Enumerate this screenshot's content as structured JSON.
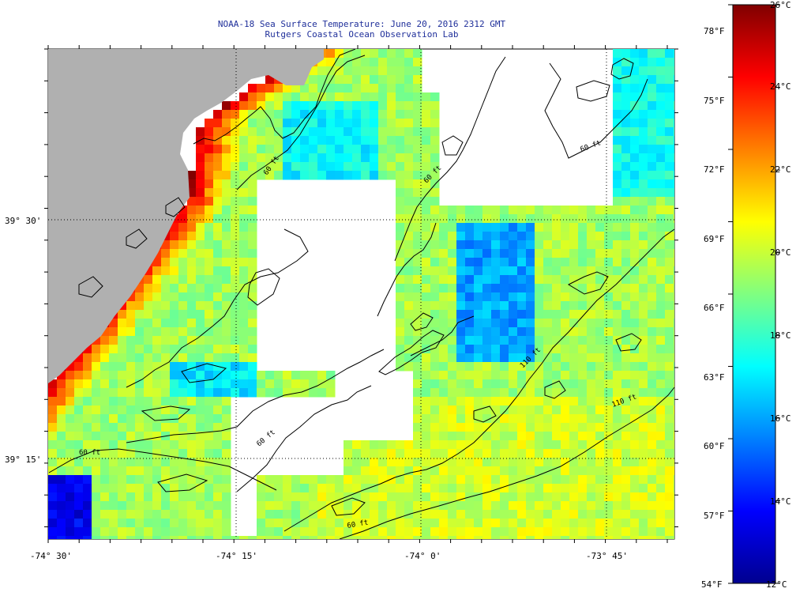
{
  "title": {
    "line1": "NOAA-18 Sea Surface Temperature:  June 20, 2016 2312 GMT",
    "line2": "Rutgers Coastal Ocean Observation Lab"
  },
  "map": {
    "lat_labels": [
      "39° 30'",
      "39° 15'"
    ],
    "lon_labels": [
      "-74° 30'",
      "-74° 15'",
      "-74° 0'",
      "-73° 45'"
    ],
    "contour_labels": [
      "60 ft",
      "60 ft",
      "110 ft",
      "110 ft",
      "60 ft",
      "60 ft",
      "60 ft",
      "60 ft"
    ],
    "colors": {
      "land": "#b0b0b0",
      "no_data": "#ffffff",
      "contour": "#000000"
    }
  },
  "colorbar": {
    "fahrenheit": [
      "78°F",
      "75°F",
      "72°F",
      "69°F",
      "66°F",
      "63°F",
      "60°F",
      "57°F",
      "54°F"
    ],
    "celsius": [
      "26°C",
      "24°C",
      "22°C",
      "20°C",
      "18°C",
      "16°C",
      "14°C",
      "12°C"
    ],
    "range_c": [
      12,
      26
    ],
    "colors": [
      "#00008f",
      "#0000ff",
      "#0080ff",
      "#00ffff",
      "#80ff80",
      "#ffff00",
      "#ff8000",
      "#ff0000",
      "#800000"
    ]
  }
}
